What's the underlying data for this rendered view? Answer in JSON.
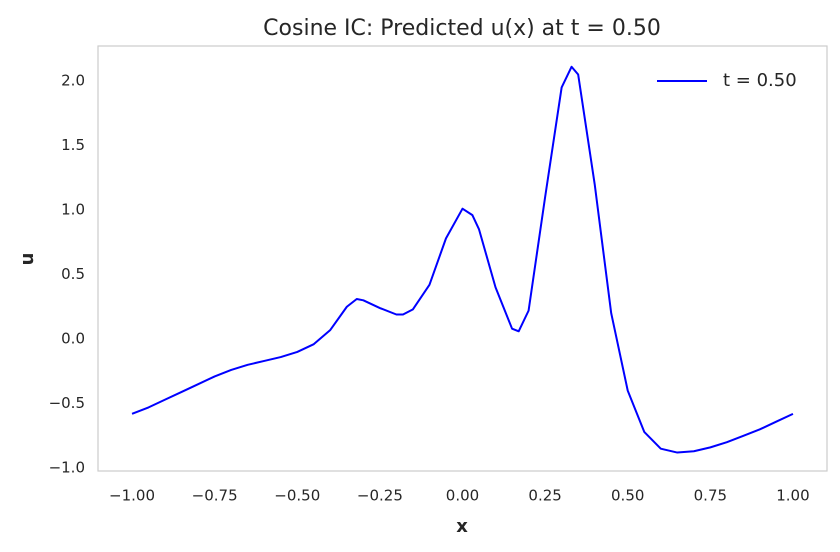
{
  "chart_data": {
    "type": "line",
    "title": "Cosine IC: Predicted u(x) at t = 0.50",
    "x_label": "x",
    "y_label": "u",
    "x": [
      -1.0,
      -0.95,
      -0.9,
      -0.85,
      -0.8,
      -0.75,
      -0.7,
      -0.65,
      -0.6,
      -0.55,
      -0.5,
      -0.45,
      -0.4,
      -0.35,
      -0.32,
      -0.3,
      -0.25,
      -0.2,
      -0.18,
      -0.15,
      -0.1,
      -0.05,
      0.0,
      0.03,
      0.05,
      0.1,
      0.15,
      0.17,
      0.2,
      0.25,
      0.3,
      0.33,
      0.35,
      0.4,
      0.45,
      0.5,
      0.55,
      0.6,
      0.65,
      0.7,
      0.75,
      0.8,
      0.85,
      0.9,
      0.95,
      1.0
    ],
    "series": [
      {
        "name": "t = 0.50",
        "color": "#0000ff",
        "values": [
          -0.58,
          -0.53,
          -0.47,
          -0.41,
          -0.35,
          -0.29,
          -0.24,
          -0.2,
          -0.17,
          -0.14,
          -0.1,
          -0.04,
          0.07,
          0.25,
          0.31,
          0.3,
          0.24,
          0.19,
          0.19,
          0.23,
          0.42,
          0.78,
          1.01,
          0.96,
          0.85,
          0.4,
          0.08,
          0.06,
          0.22,
          1.1,
          1.95,
          2.11,
          2.05,
          1.2,
          0.2,
          -0.4,
          -0.72,
          -0.85,
          -0.88,
          -0.87,
          -0.84,
          -0.8,
          -0.75,
          -0.7,
          -0.64,
          -0.58
        ]
      }
    ],
    "xlim": [
      -1.103,
      1.103
    ],
    "ylim": [
      -1.023,
      2.271
    ],
    "xticks": [
      {
        "value": -1.0,
        "label": "−1.00"
      },
      {
        "value": -0.75,
        "label": "−0.75"
      },
      {
        "value": -0.5,
        "label": "−0.50"
      },
      {
        "value": -0.25,
        "label": "−0.25"
      },
      {
        "value": 0,
        "label": "0.00"
      },
      {
        "value": 0.25,
        "label": "0.25"
      },
      {
        "value": 0.5,
        "label": "0.50"
      },
      {
        "value": 0.75,
        "label": "0.75"
      },
      {
        "value": 1.0,
        "label": "1.00"
      }
    ],
    "yticks": [
      {
        "value": -1.0,
        "label": "−1.0"
      },
      {
        "value": -0.5,
        "label": "−0.5"
      },
      {
        "value": 0,
        "label": "0.0"
      },
      0.5,
      {
        "value": 1,
        "label": "1.0"
      },
      1.5,
      {
        "value": 2,
        "label": "2.0"
      }
    ],
    "grid": false,
    "legend": "upper right"
  }
}
